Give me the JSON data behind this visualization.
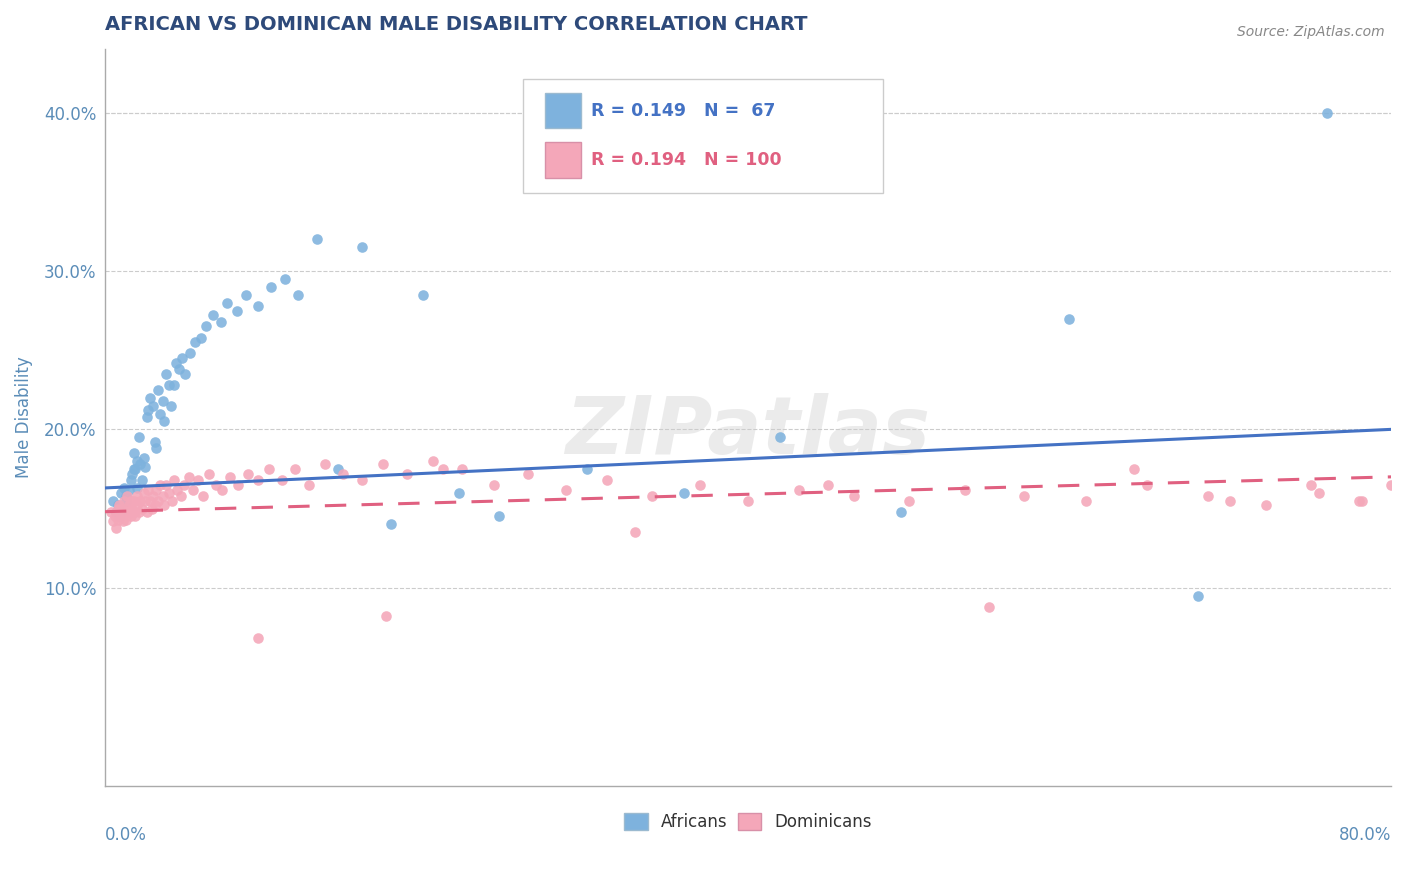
{
  "title": "AFRICAN VS DOMINICAN MALE DISABILITY CORRELATION CHART",
  "source_text": "Source: ZipAtlas.com",
  "ylabel": "Male Disability",
  "xlim": [
    0.0,
    0.8
  ],
  "ylim": [
    -0.025,
    0.44
  ],
  "african_R": 0.149,
  "african_N": 67,
  "dominican_R": 0.194,
  "dominican_N": 100,
  "african_color": "#7EB2DD",
  "dominican_color": "#F4A7B9",
  "african_line_color": "#4472C4",
  "dominican_line_color": "#E06080",
  "legend_label_african": "Africans",
  "legend_label_dominican": "Dominicans",
  "title_color": "#2E4A7A",
  "axis_label_color": "#5B8DB8",
  "watermark_text": "ZIPatlas",
  "background_color": "#FFFFFF",
  "african_trend": [
    0.163,
    0.2
  ],
  "dominican_trend": [
    0.148,
    0.17
  ],
  "african_x": [
    0.005,
    0.007,
    0.008,
    0.009,
    0.01,
    0.01,
    0.012,
    0.013,
    0.013,
    0.015,
    0.016,
    0.017,
    0.018,
    0.018,
    0.019,
    0.02,
    0.02,
    0.021,
    0.022,
    0.023,
    0.024,
    0.025,
    0.026,
    0.027,
    0.028,
    0.03,
    0.031,
    0.032,
    0.033,
    0.034,
    0.036,
    0.037,
    0.038,
    0.04,
    0.041,
    0.043,
    0.044,
    0.046,
    0.048,
    0.05,
    0.053,
    0.056,
    0.06,
    0.063,
    0.067,
    0.072,
    0.076,
    0.082,
    0.088,
    0.095,
    0.103,
    0.112,
    0.12,
    0.132,
    0.145,
    0.16,
    0.178,
    0.198,
    0.22,
    0.245,
    0.3,
    0.36,
    0.42,
    0.495,
    0.6,
    0.68,
    0.76
  ],
  "african_y": [
    0.155,
    0.148,
    0.152,
    0.145,
    0.16,
    0.148,
    0.163,
    0.158,
    0.155,
    0.162,
    0.168,
    0.172,
    0.175,
    0.185,
    0.175,
    0.18,
    0.163,
    0.195,
    0.178,
    0.168,
    0.182,
    0.176,
    0.208,
    0.212,
    0.22,
    0.215,
    0.192,
    0.188,
    0.225,
    0.21,
    0.218,
    0.205,
    0.235,
    0.228,
    0.215,
    0.228,
    0.242,
    0.238,
    0.245,
    0.235,
    0.248,
    0.255,
    0.258,
    0.265,
    0.272,
    0.268,
    0.28,
    0.275,
    0.285,
    0.278,
    0.29,
    0.295,
    0.285,
    0.32,
    0.175,
    0.315,
    0.14,
    0.285,
    0.16,
    0.145,
    0.175,
    0.16,
    0.195,
    0.148,
    0.27,
    0.095,
    0.4
  ],
  "dominican_x": [
    0.004,
    0.005,
    0.006,
    0.007,
    0.008,
    0.008,
    0.009,
    0.009,
    0.01,
    0.01,
    0.011,
    0.012,
    0.012,
    0.013,
    0.013,
    0.014,
    0.015,
    0.015,
    0.016,
    0.016,
    0.017,
    0.018,
    0.018,
    0.019,
    0.02,
    0.02,
    0.021,
    0.022,
    0.023,
    0.024,
    0.025,
    0.026,
    0.027,
    0.028,
    0.029,
    0.03,
    0.031,
    0.032,
    0.033,
    0.034,
    0.036,
    0.037,
    0.038,
    0.04,
    0.042,
    0.043,
    0.045,
    0.047,
    0.049,
    0.052,
    0.055,
    0.058,
    0.061,
    0.065,
    0.069,
    0.073,
    0.078,
    0.083,
    0.089,
    0.095,
    0.102,
    0.11,
    0.118,
    0.127,
    0.137,
    0.148,
    0.16,
    0.173,
    0.188,
    0.204,
    0.222,
    0.242,
    0.263,
    0.287,
    0.312,
    0.34,
    0.37,
    0.4,
    0.432,
    0.466,
    0.5,
    0.535,
    0.572,
    0.61,
    0.648,
    0.686,
    0.722,
    0.755,
    0.782,
    0.8,
    0.175,
    0.095,
    0.21,
    0.33,
    0.45,
    0.55,
    0.64,
    0.7,
    0.75,
    0.78
  ],
  "dominican_y": [
    0.148,
    0.142,
    0.145,
    0.138,
    0.15,
    0.143,
    0.148,
    0.152,
    0.145,
    0.15,
    0.142,
    0.148,
    0.155,
    0.15,
    0.143,
    0.158,
    0.148,
    0.152,
    0.145,
    0.155,
    0.15,
    0.148,
    0.155,
    0.145,
    0.152,
    0.158,
    0.148,
    0.155,
    0.15,
    0.16,
    0.155,
    0.148,
    0.162,
    0.155,
    0.15,
    0.158,
    0.152,
    0.162,
    0.155,
    0.165,
    0.158,
    0.152,
    0.165,
    0.16,
    0.155,
    0.168,
    0.162,
    0.158,
    0.165,
    0.17,
    0.162,
    0.168,
    0.158,
    0.172,
    0.165,
    0.162,
    0.17,
    0.165,
    0.172,
    0.168,
    0.175,
    0.168,
    0.175,
    0.165,
    0.178,
    0.172,
    0.168,
    0.178,
    0.172,
    0.18,
    0.175,
    0.165,
    0.172,
    0.162,
    0.168,
    0.158,
    0.165,
    0.155,
    0.162,
    0.158,
    0.155,
    0.162,
    0.158,
    0.155,
    0.165,
    0.158,
    0.152,
    0.16,
    0.155,
    0.165,
    0.082,
    0.068,
    0.175,
    0.135,
    0.165,
    0.088,
    0.175,
    0.155,
    0.165,
    0.155
  ]
}
